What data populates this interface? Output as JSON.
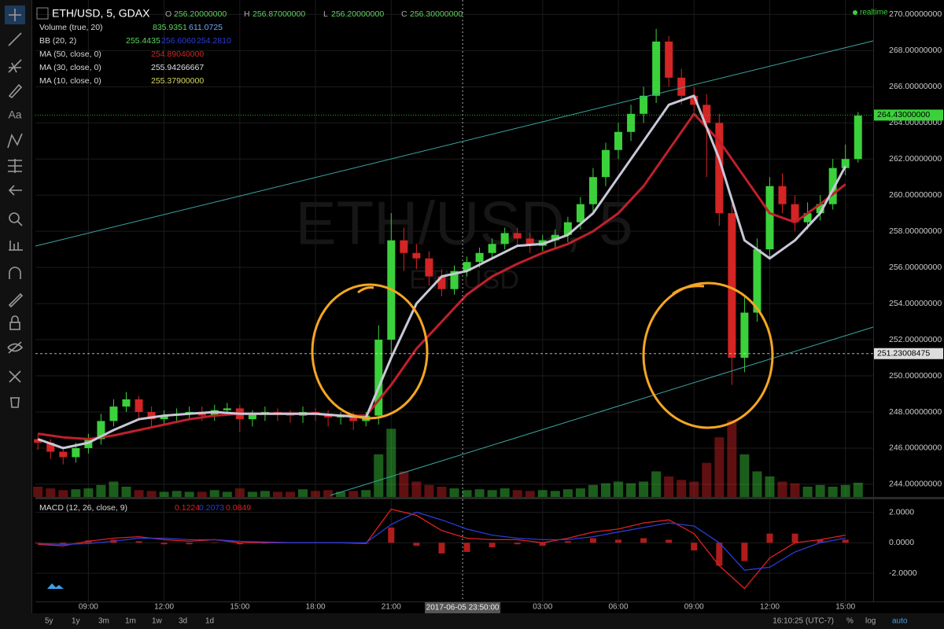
{
  "chart_data": [
    {
      "type": "candlestick",
      "title": "ETH/USD, 5, GDAX",
      "watermark": {
        "title": "ETH/USD, 5",
        "subtitle": "ETHUSD"
      },
      "up_color": "#3bd13b",
      "down_color": "#d42424",
      "xlim": [
        6.9,
        40.1
      ],
      "xticks": [
        {
          "value": 9,
          "label": "09:00"
        },
        {
          "value": 12,
          "label": "12:00"
        },
        {
          "value": 15,
          "label": "15:00"
        },
        {
          "value": 18,
          "label": "18:00"
        },
        {
          "value": 21,
          "label": "21:00"
        },
        {
          "value": 27,
          "label": "03:00"
        },
        {
          "value": 30,
          "label": "06:00"
        },
        {
          "value": 33,
          "label": "09:00"
        },
        {
          "value": 36,
          "label": "12:00"
        },
        {
          "value": 39,
          "label": "15:00"
        }
      ],
      "ylim": [
        243.3,
        270.8
      ],
      "yticks": [
        {
          "value": 244,
          "label": "244.00000000"
        },
        {
          "value": 246,
          "label": "246.00000000"
        },
        {
          "value": 248,
          "label": "248.00000000"
        },
        {
          "value": 250,
          "label": "250.00000000"
        },
        {
          "value": 252,
          "label": "252.00000000"
        },
        {
          "value": 254,
          "label": "254.00000000"
        },
        {
          "value": 256,
          "label": "256.00000000"
        },
        {
          "value": 258,
          "label": "258.00000000"
        },
        {
          "value": 260,
          "label": "260.00000000"
        },
        {
          "value": 262,
          "label": "262.00000000"
        },
        {
          "value": 264,
          "label": "264.00000000"
        },
        {
          "value": 266,
          "label": "266.00000000"
        },
        {
          "value": 268,
          "label": "268.00000000"
        },
        {
          "value": 270,
          "label": "270.00000000"
        }
      ],
      "grid": true,
      "x": [
        7.0,
        7.5,
        8.0,
        8.5,
        9.0,
        9.5,
        10.0,
        10.5,
        11.0,
        11.5,
        12.0,
        12.5,
        13.0,
        13.5,
        14.0,
        14.5,
        15.0,
        15.5,
        16.0,
        16.5,
        17.0,
        17.5,
        18.0,
        18.5,
        19.0,
        19.5,
        20.0,
        20.5,
        21.0,
        21.5,
        22.0,
        22.5,
        23.0,
        23.5,
        24.0,
        24.5,
        25.0,
        25.5,
        26.0,
        26.5,
        27.0,
        27.5,
        28.0,
        28.5,
        29.0,
        29.5,
        30.0,
        30.5,
        31.0,
        31.5,
        32.0,
        32.5,
        33.0,
        33.5,
        34.0,
        34.5,
        35.0,
        35.5,
        36.0,
        36.5,
        37.0,
        37.5,
        38.0,
        38.5,
        39.0,
        39.5
      ],
      "open": [
        246.5,
        246.3,
        245.8,
        245.5,
        246.0,
        246.5,
        247.5,
        248.3,
        248.7,
        248.0,
        247.6,
        247.8,
        247.9,
        248.0,
        247.8,
        248.1,
        248.2,
        247.6,
        247.9,
        248.0,
        247.9,
        247.8,
        248.0,
        247.9,
        247.7,
        247.8,
        247.5,
        247.8,
        252.0,
        257.5,
        256.8,
        256.5,
        255.5,
        254.8,
        255.8,
        256.3,
        256.8,
        257.3,
        257.9,
        257.6,
        257.2,
        257.5,
        257.8,
        258.5,
        259.5,
        261.0,
        262.5,
        263.5,
        264.5,
        265.5,
        268.5,
        266.5,
        265.5,
        265.0,
        264.0,
        259.0,
        251.0,
        253.5,
        257.0,
        260.5,
        259.5,
        258.5,
        259.0,
        259.5,
        261.5,
        262.0
      ],
      "high": [
        246.8,
        246.5,
        246.1,
        246.3,
        246.8,
        247.9,
        248.7,
        249.1,
        248.9,
        248.3,
        248.1,
        248.2,
        248.3,
        248.3,
        248.4,
        248.5,
        248.4,
        248.1,
        248.3,
        248.2,
        248.1,
        248.3,
        248.2,
        248.1,
        248.0,
        248.0,
        248.0,
        252.8,
        259.0,
        258.2,
        257.3,
        256.9,
        255.9,
        256.1,
        256.6,
        257.1,
        257.6,
        258.2,
        258.2,
        257.9,
        257.8,
        258.1,
        258.8,
        259.9,
        261.5,
        262.9,
        264.0,
        265.0,
        266.0,
        269.2,
        268.8,
        267.0,
        266.0,
        265.6,
        264.5,
        259.5,
        254.5,
        257.6,
        261.0,
        261.2,
        260.0,
        259.6,
        260.0,
        262.0,
        262.8,
        264.6
      ],
      "low": [
        245.9,
        245.4,
        245.1,
        245.2,
        245.7,
        246.2,
        247.2,
        248.0,
        247.6,
        247.2,
        247.3,
        247.5,
        247.6,
        247.5,
        247.5,
        247.8,
        246.9,
        247.2,
        247.5,
        247.5,
        247.4,
        247.4,
        247.5,
        247.2,
        247.3,
        247.0,
        247.2,
        247.3,
        251.0,
        255.8,
        255.9,
        255.0,
        254.4,
        254.5,
        255.5,
        256.0,
        256.5,
        257.0,
        257.2,
        256.8,
        256.9,
        257.1,
        257.4,
        258.1,
        259.1,
        260.5,
        262.0,
        263.0,
        264.0,
        265.1,
        266.0,
        265.0,
        264.6,
        261.0,
        258.3,
        249.5,
        250.2,
        253.0,
        256.5,
        259.0,
        258.0,
        258.1,
        258.6,
        259.2,
        261.1,
        261.8
      ],
      "close": [
        246.3,
        245.8,
        245.5,
        246.0,
        246.5,
        247.5,
        248.3,
        248.7,
        248.0,
        247.6,
        247.8,
        247.9,
        248.0,
        247.8,
        248.1,
        248.2,
        247.6,
        247.9,
        248.0,
        247.9,
        247.8,
        248.0,
        247.9,
        247.7,
        247.8,
        247.5,
        247.8,
        252.0,
        257.5,
        256.8,
        256.5,
        255.5,
        254.8,
        255.8,
        256.3,
        256.8,
        257.3,
        257.9,
        257.6,
        257.2,
        257.5,
        257.8,
        258.5,
        259.5,
        261.0,
        262.5,
        263.5,
        264.5,
        265.5,
        268.5,
        266.5,
        265.5,
        265.0,
        264.0,
        259.0,
        251.0,
        253.5,
        257.0,
        260.5,
        259.5,
        258.5,
        259.0,
        259.5,
        261.5,
        262.0,
        264.4
      ],
      "volume": {
        "vlim": [
          0,
          6000
        ],
        "values": [
          600,
          500,
          400,
          450,
          500,
          700,
          900,
          600,
          400,
          350,
          300,
          350,
          300,
          300,
          400,
          300,
          500,
          300,
          350,
          300,
          300,
          450,
          350,
          400,
          300,
          350,
          400,
          2500,
          4000,
          1500,
          900,
          700,
          600,
          500,
          400,
          450,
          400,
          500,
          400,
          350,
          400,
          350,
          450,
          500,
          700,
          800,
          900,
          800,
          900,
          1500,
          1200,
          1000,
          900,
          2000,
          3500,
          4500,
          2500,
          1500,
          1200,
          900,
          800,
          600,
          700,
          600,
          700,
          836
        ]
      },
      "overlays": {
        "x": [
          7,
          8,
          9,
          10,
          11,
          12,
          13,
          14,
          15,
          16,
          17,
          18,
          19,
          20,
          21,
          22,
          23,
          24,
          25,
          26,
          27,
          28,
          29,
          30,
          31,
          32,
          33,
          34,
          35,
          36,
          37,
          38,
          39
        ],
        "series": [
          {
            "name": "MA (50, close, 0)",
            "legend_value": "254.89040000",
            "color": "#c0202c",
            "width": 3,
            "values": [
              246.8,
              246.6,
              246.5,
              246.7,
              247.0,
              247.3,
              247.6,
              247.8,
              247.9,
              247.9,
              247.9,
              247.9,
              247.8,
              247.8,
              249.5,
              251.5,
              253.0,
              254.5,
              255.5,
              256.2,
              256.8,
              257.3,
              258.0,
              259.0,
              260.5,
              262.5,
              264.5,
              263.0,
              261.0,
              259.0,
              258.5,
              259.5,
              260.6
            ]
          },
          {
            "name": "MA (30, close, 0)",
            "legend_value": "255.94266667",
            "color": "#c8c8d8",
            "width": 3,
            "values": [
              246.5,
              246.0,
              246.3,
              247.0,
              247.6,
              247.8,
              247.9,
              248.0,
              247.9,
              247.9,
              247.9,
              247.9,
              247.8,
              247.7,
              251.0,
              254.0,
              255.5,
              255.8,
              256.5,
              257.2,
              257.3,
              257.8,
              259.0,
              261.0,
              263.0,
              265.0,
              265.5,
              262.0,
              257.5,
              256.5,
              257.5,
              259.0,
              261.6
            ]
          }
        ]
      },
      "price_labels": [
        {
          "value": 264.43,
          "label": "264.43000000",
          "color": "#3bd13b"
        },
        {
          "value": 251.23008475,
          "label": "251.23008475",
          "color": "#e0e0e0"
        }
      ],
      "crosshair": {
        "value": 23.83,
        "label": "2017-06-05 23:50:00"
      },
      "legend": {
        "ohlc": [
          {
            "key": "O",
            "value": "256.20000000"
          },
          {
            "key": "H",
            "value": "256.87000000"
          },
          {
            "key": "L",
            "value": "256.20000000"
          },
          {
            "key": "C",
            "value": "256.30000000"
          }
        ],
        "volume": {
          "name": "Volume (true, 20)",
          "values": [
            "835.9351",
            "611.0725"
          ]
        },
        "bb": {
          "name": "BB (20, 2)",
          "values": [
            "255.4435",
            "256.6060",
            "254.2810"
          ]
        },
        "ma10": {
          "name": "MA (10, close, 0)",
          "value": "255.37900000"
        }
      }
    },
    {
      "type": "macd",
      "title": "MACD (12, 26, close, 9)",
      "legend_values": [
        "0.1224",
        "0.2073",
        "0.0849"
      ],
      "ylim": [
        -3.85,
        2.8
      ],
      "yticks": [
        {
          "value": 2,
          "label": "2.0000"
        },
        {
          "value": 0,
          "label": "0.0000"
        },
        {
          "value": -2,
          "label": "-2.0000"
        }
      ],
      "x": [
        7,
        8,
        9,
        10,
        11,
        12,
        13,
        14,
        15,
        16,
        17,
        18,
        19,
        20,
        21,
        22,
        23,
        24,
        25,
        26,
        27,
        28,
        29,
        30,
        31,
        32,
        33,
        34,
        35,
        36,
        37,
        38,
        39
      ],
      "histogram": {
        "color": "#b01c1c",
        "values": [
          -0.05,
          -0.1,
          0.15,
          0.2,
          0.1,
          -0.1,
          -0.1,
          0.0,
          -0.1,
          -0.05,
          0,
          0,
          0,
          -0.05,
          1.0,
          -0.2,
          -0.7,
          -0.6,
          -0.3,
          -0.1,
          -0.2,
          0.1,
          0.3,
          0.2,
          0.3,
          0.2,
          -0.5,
          -1.5,
          -1.2,
          0.6,
          0.6,
          0.2,
          0.2
        ]
      },
      "series": [
        {
          "name": "MACD",
          "color": "#e02020",
          "values": [
            -0.1,
            -0.2,
            0.1,
            0.3,
            0.4,
            0.2,
            0.1,
            0.2,
            0.0,
            0.0,
            0.0,
            0.0,
            0.0,
            -0.05,
            2.2,
            1.8,
            0.8,
            0.3,
            0.2,
            0.2,
            0.0,
            0.3,
            0.7,
            0.9,
            1.3,
            1.5,
            0.6,
            -1.5,
            -3.0,
            -1.0,
            0.0,
            0.2,
            0.5
          ]
        },
        {
          "name": "Signal",
          "color": "#2a3cd8",
          "values": [
            -0.05,
            -0.1,
            -0.05,
            0.1,
            0.3,
            0.3,
            0.2,
            0.2,
            0.1,
            0.05,
            0.0,
            0.0,
            0.0,
            0.0,
            1.2,
            2.0,
            1.5,
            0.9,
            0.5,
            0.3,
            0.2,
            0.2,
            0.4,
            0.7,
            1.0,
            1.3,
            1.1,
            0.0,
            -1.8,
            -1.6,
            -0.6,
            0.0,
            0.3
          ]
        }
      ]
    }
  ],
  "toolbar": {
    "text_tool": "Aa"
  },
  "status": {
    "realtime": "realtime"
  },
  "bottom_bar": {
    "ranges": [
      "5y",
      "1y",
      "3m",
      "1m",
      "1w",
      "3d",
      "1d"
    ],
    "clock": "16:10:25 (UTC-7)",
    "toggles": [
      "%",
      "log",
      "auto"
    ]
  }
}
